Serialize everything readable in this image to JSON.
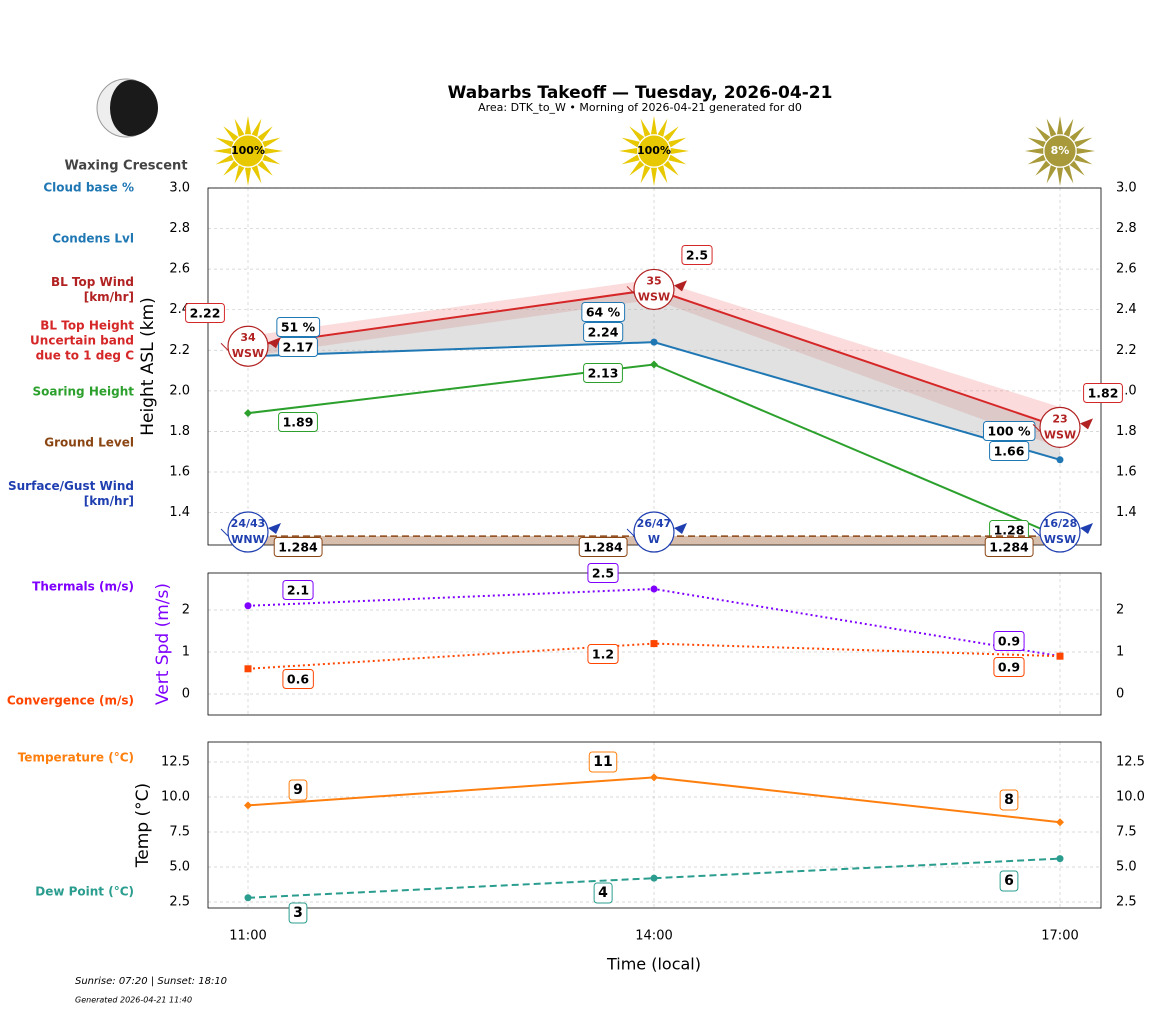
{
  "title": "Wabarbs Takeoff — Tuesday, 2026-04-21",
  "subtitle": "Area: DTK_to_W • Morning of 2026-04-21 generated for d0",
  "moon_phase": "Waxing Crescent",
  "sun": {
    "values": [
      100,
      100,
      8
    ],
    "value_labels": [
      "100%",
      "100%",
      "8%"
    ]
  },
  "footer": {
    "sun_times": "Sunrise: 07:20 | Sunset: 18:10",
    "generated": "Generated 2026-04-21 11:40"
  },
  "chart_data": [
    {
      "type": "line",
      "ylabel": "Height ASL (km)",
      "ylim": [
        1.24,
        3.0
      ],
      "yticks": [
        1.4,
        1.6,
        1.8,
        {
          "value": 2,
          "label": "2.0"
        },
        2.2,
        2.4,
        2.6,
        2.8,
        {
          "value": 3,
          "label": "3.0"
        }
      ],
      "grid": true,
      "series": [
        {
          "name": "BL Top Height\nUncertain band\ndue to 1 deg C",
          "color": "#d62728",
          "linestyle": "solid",
          "marker": "none",
          "values": [
            2.22,
            2.5,
            1.82
          ],
          "upper": [
            2.27,
            2.55,
            1.92
          ],
          "lower": [
            2.17,
            2.45,
            1.72
          ]
        },
        {
          "name": "Condens Lvl",
          "color": "#1f77b4",
          "linestyle": "solid",
          "marker": "circle",
          "values": [
            2.17,
            2.24,
            1.66
          ]
        },
        {
          "name": "Soaring Height",
          "color": "#2ca02c",
          "linestyle": "solid",
          "marker": "diamond",
          "values": [
            1.89,
            2.13,
            1.28
          ]
        },
        {
          "name": "Ground Level",
          "color": "#8b4513",
          "linestyle": "dashed",
          "marker": "none",
          "values": [
            1.284,
            1.284,
            1.284
          ]
        }
      ],
      "cloud_base": {
        "name": "Cloud base %",
        "color": "#1f77b4",
        "values": [
          51,
          64,
          100
        ],
        "value_labels": [
          "51 %",
          "64 %",
          "100 %"
        ]
      },
      "bl_top_wind": {
        "name": "BL Top Wind\n[km/hr]",
        "color": "#b22222",
        "values": [
          34,
          35,
          23
        ],
        "directions": [
          "WSW",
          "WSW",
          "WSW"
        ]
      },
      "surface_wind": {
        "name": "Surface/Gust Wind\n[km/hr]",
        "color": "#1f3fb0",
        "labels": [
          "24/43",
          "26/47",
          "16/28"
        ],
        "directions": [
          "WNW",
          "W",
          "WSW"
        ]
      }
    },
    {
      "type": "line",
      "ylabel": "Vert Spd (m/s)",
      "ylabel_color": "#7f00ff",
      "ylim": [
        -0.5,
        2.88
      ],
      "yticks": [
        0,
        1,
        2
      ],
      "grid": true,
      "series": [
        {
          "name": "Thermals (m/s)",
          "color": "#7f00ff",
          "linestyle": "dotted",
          "marker": "circle",
          "values": [
            2.1,
            2.5,
            0.9
          ]
        },
        {
          "name": "Convergence (m/s)",
          "color": "#ff4500",
          "linestyle": "dotted",
          "marker": "square",
          "values": [
            0.6,
            1.2,
            0.9
          ]
        }
      ]
    },
    {
      "type": "line",
      "ylabel": "Temp (°C)",
      "xlabel": "Time (local)",
      "categories": [
        "11:00",
        "14:00",
        "17:00"
      ],
      "ylim": [
        2.07,
        13.93
      ],
      "yticks": [
        2.5,
        {
          "value": 5,
          "label": "5.0"
        },
        7.5,
        {
          "value": 10,
          "label": "10.0"
        },
        12.5
      ],
      "grid": true,
      "series": [
        {
          "name": "Temperature (°C)",
          "color": "#ff7f0e",
          "linestyle": "solid",
          "marker": "diamond",
          "values": [
            9.4,
            11.4,
            8.2
          ],
          "value_labels": [
            "9",
            "11",
            "8"
          ]
        },
        {
          "name": "Dew Point (°C)",
          "color": "#2a9d8f",
          "linestyle": "dashed",
          "marker": "circle",
          "values": [
            2.8,
            4.2,
            5.6
          ],
          "value_labels": [
            "3",
            "4",
            "6"
          ]
        }
      ]
    }
  ]
}
